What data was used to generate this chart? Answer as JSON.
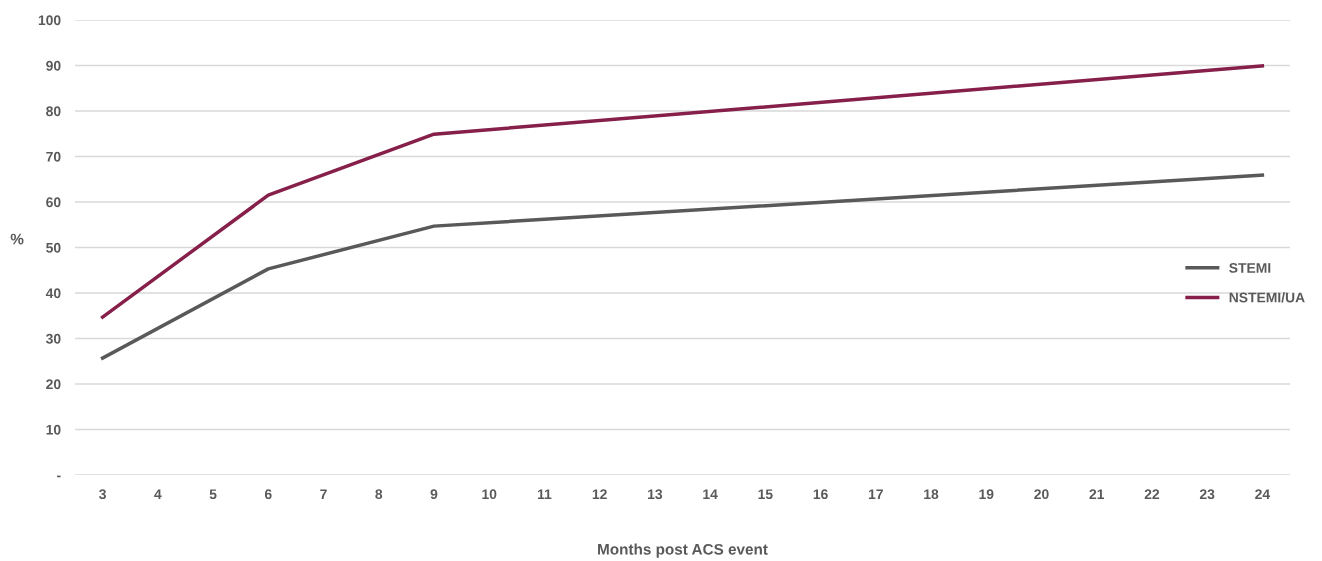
{
  "chart_data": {
    "type": "line",
    "xlabel": "Months post ACS event",
    "ylabel": "%",
    "x": [
      3,
      6,
      9,
      24
    ],
    "series": [
      {
        "name": "STEMI",
        "color": "#595959",
        "values": [
          25.7,
          45.3,
          54.7,
          65.9
        ]
      },
      {
        "name": "NSTEMI/UA",
        "color": "#861f4a",
        "values": [
          34.7,
          61.5,
          74.9,
          89.9
        ]
      }
    ],
    "xlim": [
      2.5,
      24.5
    ],
    "xticks": [
      3,
      4,
      5,
      6,
      7,
      8,
      9,
      10,
      11,
      12,
      13,
      14,
      15,
      16,
      17,
      18,
      19,
      20,
      21,
      22,
      23,
      24
    ],
    "ylim": [
      0,
      100
    ],
    "yticks": [
      {
        "value": 0,
        "label": "-"
      },
      10,
      20,
      30,
      40,
      50,
      60,
      70,
      80,
      90,
      100
    ],
    "grid": "y",
    "legend": "right",
    "marker": "none",
    "line_style": "solid"
  }
}
